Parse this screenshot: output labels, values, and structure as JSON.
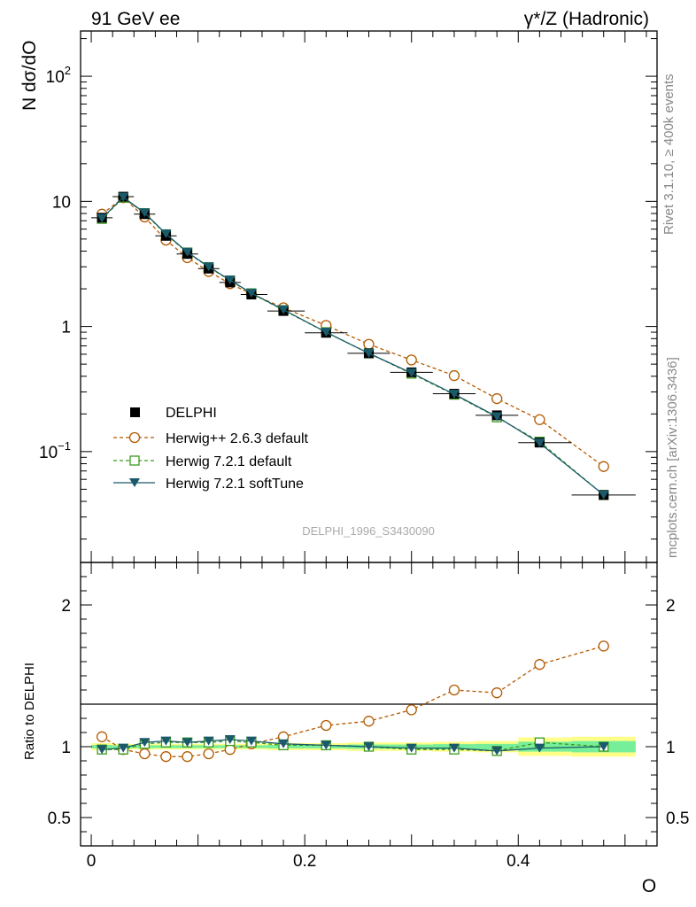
{
  "header": {
    "left_title": "91 GeV ee",
    "right_title": "γ*/Z (Hadronic)",
    "side_rivet": "Rivet 3.1.10, ≥ 400k events",
    "side_mcplots": "mcplots.cern.ch [arXiv:1306.3436]",
    "watermark": "DELPHI_1996_S3430090"
  },
  "colors": {
    "data": "#000000",
    "herwigpp": "#b35900",
    "herwig721": "#3a9a1a",
    "softtune": "#1a5a6a",
    "band_outer": "#ffff88",
    "band_inner": "#77ee99"
  },
  "chart_data": [
    {
      "type": "line",
      "name": "main",
      "title": "91 GeV ee",
      "xlabel": "O",
      "ylabel": "N dσ/dO",
      "yscale": "log",
      "xlim": [
        -0.01,
        0.53
      ],
      "ylim": [
        0.013,
        230
      ],
      "yticks": [
        {
          "value": 0.1,
          "base": "10",
          "exp": "−1"
        },
        {
          "value": 1,
          "label": "1"
        },
        {
          "value": 10,
          "label": "10"
        },
        {
          "value": 100,
          "base": "10",
          "exp": "2"
        }
      ],
      "x": [
        0.01,
        0.03,
        0.05,
        0.07,
        0.09,
        0.11,
        0.13,
        0.15,
        0.18,
        0.22,
        0.26,
        0.3,
        0.34,
        0.38,
        0.42,
        0.48
      ],
      "series": [
        {
          "name": "DELPHI",
          "key": "data",
          "values": [
            7.4,
            10.9,
            7.9,
            5.3,
            3.8,
            2.9,
            2.25,
            1.8,
            1.33,
            0.89,
            0.61,
            0.43,
            0.29,
            0.195,
            0.118,
            0.045
          ]
        },
        {
          "name": "Herwig++ 2.6.3 default",
          "key": "herwigpp",
          "values": [
            7.9,
            10.7,
            7.5,
            4.9,
            3.55,
            2.75,
            2.2,
            1.82,
            1.41,
            1.02,
            0.72,
            0.54,
            0.405,
            0.265,
            0.18,
            0.076
          ]
        },
        {
          "name": "Herwig 7.2.1 default",
          "key": "herwig721",
          "values": [
            7.25,
            10.7,
            8.05,
            5.45,
            3.9,
            2.98,
            2.33,
            1.84,
            1.35,
            0.9,
            0.61,
            0.42,
            0.285,
            0.188,
            0.12,
            0.045
          ]
        },
        {
          "name": "Herwig 7.2.1 softTune",
          "key": "softtune",
          "values": [
            7.3,
            10.8,
            8.1,
            5.5,
            3.92,
            3.0,
            2.35,
            1.85,
            1.36,
            0.9,
            0.61,
            0.425,
            0.288,
            0.19,
            0.117,
            0.045
          ]
        }
      ]
    },
    {
      "type": "line",
      "name": "ratio",
      "xlabel": "O",
      "ylabel": "Ratio to DELPHI",
      "xlim": [
        -0.01,
        0.53
      ],
      "ylim": [
        0.3,
        2.3
      ],
      "yticks": [
        0.5,
        1,
        2
      ],
      "xticks": [
        0,
        0.2,
        0.4
      ],
      "x": [
        0.01,
        0.03,
        0.05,
        0.07,
        0.09,
        0.11,
        0.13,
        0.15,
        0.18,
        0.22,
        0.26,
        0.3,
        0.34,
        0.38,
        0.42,
        0.48
      ],
      "bands": {
        "outer": [
          0.025,
          0.02,
          0.02,
          0.02,
          0.02,
          0.02,
          0.02,
          0.02,
          0.025,
          0.025,
          0.03,
          0.03,
          0.035,
          0.04,
          0.065,
          0.07
        ],
        "inner": [
          0.012,
          0.01,
          0.01,
          0.01,
          0.01,
          0.01,
          0.01,
          0.01,
          0.012,
          0.012,
          0.015,
          0.015,
          0.018,
          0.02,
          0.035,
          0.04
        ]
      },
      "series": [
        {
          "name": "Herwig++ 2.6.3 default",
          "key": "herwigpp",
          "values": [
            1.07,
            0.98,
            0.95,
            0.93,
            0.93,
            0.95,
            0.98,
            1.02,
            1.07,
            1.15,
            1.18,
            1.26,
            1.4,
            1.38,
            1.58,
            1.71
          ]
        },
        {
          "name": "Herwig 7.2.1 default",
          "key": "herwig721",
          "values": [
            0.98,
            0.98,
            1.02,
            1.03,
            1.03,
            1.03,
            1.04,
            1.03,
            1.01,
            1.01,
            1.0,
            0.98,
            0.98,
            0.97,
            1.03,
            1.0
          ]
        },
        {
          "name": "Herwig 7.2.1 softTune",
          "key": "softtune",
          "values": [
            0.98,
            0.99,
            1.03,
            1.04,
            1.03,
            1.04,
            1.05,
            1.04,
            1.02,
            1.01,
            1.0,
            0.99,
            0.99,
            0.97,
            0.99,
            1.0
          ]
        }
      ]
    }
  ]
}
